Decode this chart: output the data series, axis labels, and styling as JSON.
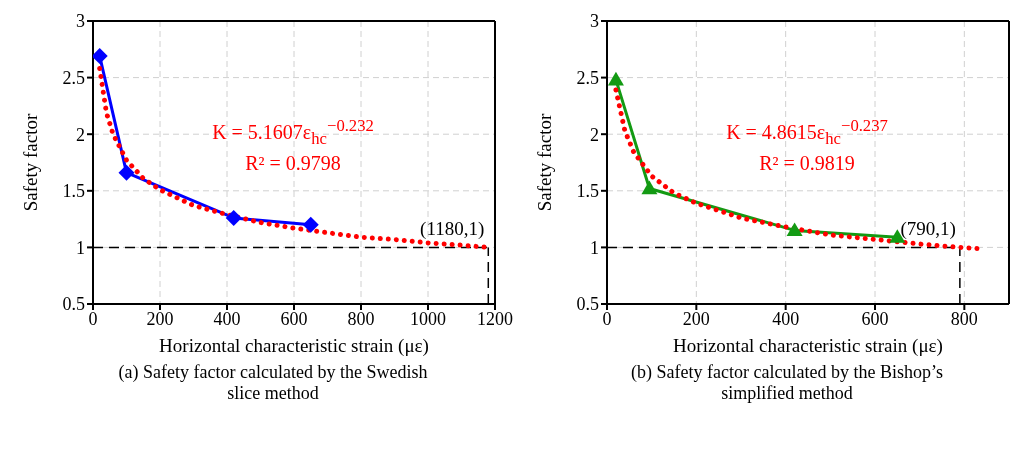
{
  "chart_data": [
    {
      "type": "line",
      "title": "(a) Safety factor calculated by the Swedish slice method",
      "xlabel": "Horizontal characteristic strain (με)",
      "ylabel": "Safety factor",
      "xlim": [
        0,
        1200
      ],
      "xticks": [
        0,
        200,
        400,
        600,
        800,
        1000,
        1200
      ],
      "ylim": [
        0.5,
        3
      ],
      "yticks": [
        0.5,
        1,
        1.5,
        2,
        2.5,
        3
      ],
      "grid": true,
      "series": [
        {
          "color": "#0000ff",
          "marker": "diamond",
          "line_style": "solid",
          "x": [
            20,
            100,
            420,
            650
          ],
          "values": [
            2.69,
            1.66,
            1.26,
            1.2
          ]
        },
        {
          "color": "#ff0000",
          "marker": "none",
          "line_style": "dotted",
          "x": [
            20,
            40,
            60,
            100,
            150,
            200,
            300,
            400,
            500,
            600,
            700,
            800,
            900,
            1000,
            1100,
            1180
          ],
          "values": [
            2.58,
            2.19,
            2.0,
            1.77,
            1.61,
            1.51,
            1.37,
            1.29,
            1.22,
            1.17,
            1.13,
            1.09,
            1.07,
            1.04,
            1.02,
            1.0
          ]
        }
      ],
      "ref_lines": [
        {
          "axis": "y",
          "value": 1,
          "color": "#000000",
          "line_style": "dashed"
        },
        {
          "axis": "x",
          "value": 1180,
          "color": "#000000",
          "line_style": "dashed"
        }
      ],
      "annotations": [
        "K = 5.1607ε$_{hc}$$^{−0.232}$",
        "R² = 0.9798",
        {
          "text": "(1180,1)",
          "x": 1180,
          "y": 1
        }
      ]
    },
    {
      "type": "line",
      "title": "(b) Safety factor calculated by the Bishop’s simplified method",
      "xlabel": "Horizontal characteristic strain (με)",
      "ylabel": "Safety factor",
      "xlim": [
        0,
        900
      ],
      "xticks": [
        0,
        200,
        400,
        600,
        800
      ],
      "ylim": [
        0.5,
        3
      ],
      "yticks": [
        0.5,
        1,
        1.5,
        2,
        2.5,
        3
      ],
      "grid": true,
      "series": [
        {
          "color": "#139a13",
          "marker": "triangle",
          "line_style": "solid",
          "x": [
            20,
            95,
            420,
            650
          ],
          "values": [
            2.48,
            1.52,
            1.15,
            1.09
          ]
        },
        {
          "color": "#ff0000",
          "marker": "none",
          "line_style": "dotted",
          "x": [
            20,
            40,
            60,
            100,
            150,
            200,
            300,
            400,
            500,
            600,
            700,
            790,
            830
          ],
          "values": [
            2.39,
            2.03,
            1.84,
            1.63,
            1.48,
            1.39,
            1.26,
            1.18,
            1.11,
            1.07,
            1.03,
            1.0,
            0.99
          ]
        }
      ],
      "ref_lines": [
        {
          "axis": "y",
          "value": 1,
          "color": "#000000",
          "line_style": "dashed"
        },
        {
          "axis": "x",
          "value": 790,
          "color": "#000000",
          "line_style": "dashed"
        }
      ],
      "annotations": [
        "K = 4.8615ε$_{hc}$$^{−0.237}$",
        "R² = 0.9819",
        {
          "text": "(790,1)",
          "x": 790,
          "y": 1
        }
      ]
    }
  ]
}
